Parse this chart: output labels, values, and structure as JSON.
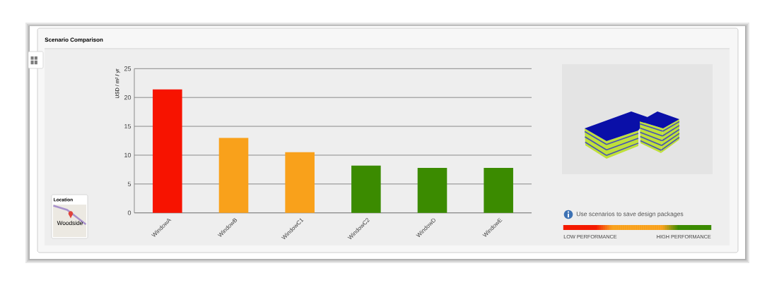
{
  "chart_data": {
    "type": "bar",
    "title": "Scenario Comparison",
    "ylabel": "USD / m² / yr",
    "categories": [
      "WindowA",
      "WindowB",
      "WindowC1",
      "WindowC2",
      "WindowD",
      "WindowE"
    ],
    "values": [
      21.4,
      13.0,
      10.5,
      8.2,
      7.8,
      7.8
    ],
    "colors": [
      "#f71300",
      "#f9a11b",
      "#f9a11b",
      "#3b8b00",
      "#3b8b00",
      "#3b8b00"
    ],
    "ylim": [
      0,
      25
    ],
    "yticks": [
      0,
      5,
      10,
      15,
      20,
      25
    ],
    "grid": "y",
    "annotations": [
      "Use scenarios to save design packages",
      "LOW PERFORMANCE",
      "HIGH PERFORMANCE",
      "Location",
      "Woodside"
    ]
  }
}
